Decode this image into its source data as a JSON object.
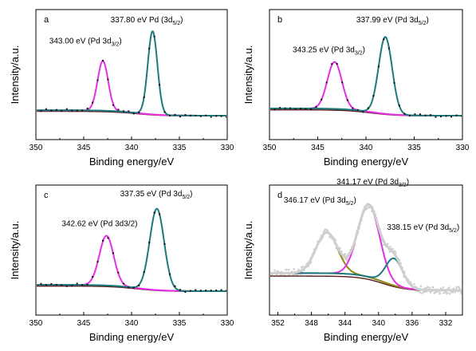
{
  "colors": {
    "magenta": "#e62ee6",
    "teal": "#1a7a7a",
    "olive": "#8a8a14",
    "brown": "#5c1a1a",
    "navy": "#24245c",
    "gray": "#cfcfcf",
    "dots": "#111111"
  },
  "chart_data": [
    {
      "type": "line",
      "panel": "a",
      "xlabel": "Binding energy/eV",
      "ylabel": "Intensity/a.u.",
      "xlim": [
        350,
        330
      ],
      "xticks": [
        350,
        345,
        340,
        335,
        330
      ],
      "x_reversed": true,
      "grid": false,
      "peaks": [
        {
          "label_prefix": "343.00 eV (Pd 3d",
          "label_sub": "3/2",
          "label_suffix": ")",
          "center": 343.0,
          "height": 0.55,
          "width": 0.55,
          "color": "magenta"
        },
        {
          "label_prefix": "337.80 eV Pd (3d",
          "label_sub": "5/2",
          "label_suffix": ")",
          "center": 337.8,
          "height": 0.92,
          "width": 0.5,
          "color": "teal"
        }
      ],
      "background": {
        "low_side": 0.02,
        "high_side": 0.08
      },
      "annotations": [
        {
          "text_prefix": "343.00 eV (Pd 3d",
          "sub": "3/2",
          "suffix": ")",
          "x": 348.6,
          "y": 0.82
        },
        {
          "text_prefix": "337.80 eV Pd (3d",
          "sub": "5/2",
          "suffix": ")",
          "x": 342.2,
          "y": 1.05
        }
      ],
      "series": [
        {
          "name": "",
          "kind": "peak",
          "peak": 0,
          "color": "magenta"
        },
        {
          "name": "",
          "kind": "peak",
          "peak": 1,
          "color": "teal"
        },
        {
          "name": "",
          "kind": "envelope",
          "color": "magenta"
        }
      ]
    },
    {
      "type": "line",
      "panel": "b",
      "xlabel": "Binding energy/eV",
      "ylabel": "Intensity/a.u.",
      "xlim": [
        350,
        330
      ],
      "xticks": [
        350,
        345,
        340,
        335,
        330
      ],
      "x_reversed": true,
      "grid": false,
      "peaks": [
        {
          "label_prefix": "343.25 eV (Pd 3d",
          "label_sub": "3/2",
          "label_suffix": ")",
          "center": 343.25,
          "height": 0.52,
          "width": 0.75,
          "color": "magenta"
        },
        {
          "label_prefix": "337.99 eV (Pd 3d",
          "label_sub": "5/2",
          "label_suffix": ")",
          "center": 337.99,
          "height": 0.85,
          "width": 0.7,
          "color": "teal"
        }
      ],
      "background": {
        "low_side": 0.02,
        "high_side": 0.1
      },
      "annotations": [
        {
          "text_prefix": "343.25 eV (Pd 3d",
          "sub": "3/2",
          "suffix": ")",
          "x": 347.6,
          "y": 0.72
        },
        {
          "text_prefix": "337.99 eV (Pd 3d",
          "sub": "5/2",
          "suffix": ")",
          "x": 341.0,
          "y": 1.05
        }
      ],
      "series": [
        {
          "name": "",
          "kind": "peak",
          "peak": 0,
          "color": "magenta"
        },
        {
          "name": "",
          "kind": "peak",
          "peak": 1,
          "color": "teal"
        },
        {
          "name": "",
          "kind": "envelope",
          "color": "magenta"
        }
      ]
    },
    {
      "type": "line",
      "panel": "c",
      "xlabel": "Binding energy/eV",
      "ylabel": "Intensity/a.u.",
      "xlim": [
        350,
        330
      ],
      "xticks": [
        350,
        345,
        340,
        335,
        330
      ],
      "x_reversed": true,
      "grid": false,
      "peaks": [
        {
          "label_prefix": "342.62 eV (Pd 3d3/2)",
          "label_sub": "",
          "label_suffix": "",
          "center": 342.62,
          "height": 0.55,
          "width": 0.75,
          "color": "magenta"
        },
        {
          "label_prefix": "337.35 eV (Pd 3d",
          "label_sub": "5/2",
          "label_suffix": ")",
          "center": 337.35,
          "height": 0.9,
          "width": 0.75,
          "color": "teal"
        }
      ],
      "background": {
        "low_side": 0.02,
        "high_side": 0.09
      },
      "annotations": [
        {
          "text_prefix": "342.62 eV (Pd 3d3/2)",
          "sub": "",
          "suffix": "",
          "x": 347.3,
          "y": 0.74
        },
        {
          "text_prefix": "337.35 eV (Pd 3d",
          "sub": "5/2",
          "suffix": ")",
          "x": 341.2,
          "y": 1.07
        }
      ],
      "series": [
        {
          "name": "",
          "kind": "peak",
          "peak": 0,
          "color": "magenta"
        },
        {
          "name": "",
          "kind": "peak",
          "peak": 1,
          "color": "teal"
        },
        {
          "name": "",
          "kind": "envelope",
          "color": "magenta"
        }
      ]
    },
    {
      "type": "line",
      "panel": "d",
      "xlabel": "Binding energy/eV",
      "ylabel": "Intensity/a.u.",
      "xlim": [
        353,
        330
      ],
      "xticks": [
        352,
        348,
        344,
        340,
        336,
        332
      ],
      "x_reversed": true,
      "grid": false,
      "peaks": [
        {
          "label_prefix": "346.17 eV (Pd 3d",
          "label_sub": "5/2",
          "label_suffix": ")",
          "center": 346.17,
          "height": 0.45,
          "width": 1.3,
          "color": "olive"
        },
        {
          "label_prefix": "341.17 eV (Pd 3d",
          "label_sub": "3/2",
          "label_suffix": ")",
          "center": 341.17,
          "height": 0.8,
          "width": 1.3,
          "color": "magenta"
        },
        {
          "label_prefix": "338.15 eV (Pd 3d",
          "label_sub": "5/2",
          "label_suffix": ")",
          "center": 338.15,
          "height": 0.3,
          "width": 1.0,
          "color": "teal"
        }
      ],
      "background": {
        "low_side": 0.03,
        "high_side": 0.22
      },
      "annotations": [
        {
          "text_prefix": "341.17 eV (Pd 3d",
          "sub": "3/2",
          "suffix": ")",
          "x": 345.0,
          "y": 1.2
        },
        {
          "text_prefix": "346.17 eV (Pd 3d",
          "sub": "5/2",
          "suffix": ")",
          "x": 351.3,
          "y": 1.0
        },
        {
          "text_prefix": "338.15 eV (Pd 3d",
          "sub": "5/2",
          "suffix": ")",
          "x": 339.0,
          "y": 0.7
        }
      ],
      "series": [
        {
          "name": "",
          "kind": "peak",
          "peak": 0,
          "color": "olive"
        },
        {
          "name": "",
          "kind": "peak",
          "peak": 1,
          "color": "magenta"
        },
        {
          "name": "",
          "kind": "peak",
          "peak": 2,
          "color": "teal"
        },
        {
          "name": "",
          "kind": "envelope",
          "color": "gray"
        }
      ]
    }
  ]
}
